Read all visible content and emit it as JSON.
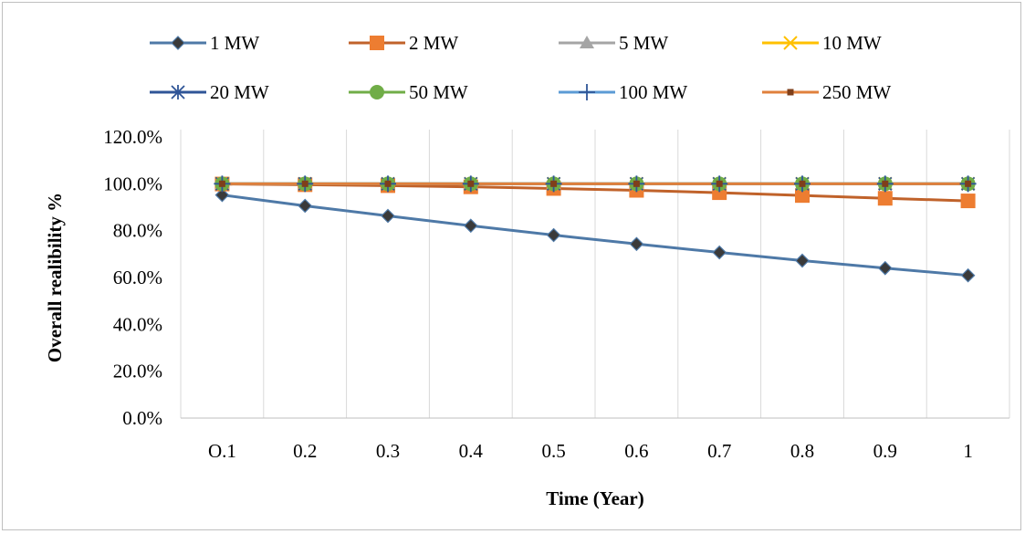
{
  "chart_data": {
    "type": "line",
    "title": "",
    "xlabel": "Time (Year)",
    "ylabel": "Overall realibility %",
    "categories": [
      "O.1",
      "0.2",
      "0.3",
      "0.4",
      "0.5",
      "0.6",
      "0.7",
      "0.8",
      "0.9",
      "1"
    ],
    "ylim": [
      0,
      120
    ],
    "y_ticks": [
      "0.0%",
      "20.0%",
      "40.0%",
      "60.0%",
      "80.0%",
      "100.0%",
      "120.0%"
    ],
    "grid": "vertical",
    "legend_position": "top",
    "series": [
      {
        "name": "1  MW",
        "color": "#4e79a7",
        "marker": "diamond-dark",
        "values": [
          95.2,
          90.6,
          86.3,
          82.1,
          78.1,
          74.3,
          70.7,
          67.2,
          64.0,
          60.9
        ]
      },
      {
        "name": "2 MW",
        "color": "#c0622a",
        "marker": "square-orange",
        "values": [
          99.9,
          99.6,
          99.2,
          98.7,
          98.0,
          97.2,
          96.2,
          95.0,
          93.8,
          92.7
        ]
      },
      {
        "name": "5 MW",
        "color": "#a5a5a5",
        "marker": "triangle",
        "values": [
          100,
          100,
          100,
          100,
          100,
          100,
          100,
          100,
          100,
          100
        ]
      },
      {
        "name": "10 MW",
        "color": "#ffc000",
        "marker": "x",
        "values": [
          100,
          100,
          100,
          100,
          100,
          100,
          100,
          100,
          100,
          100
        ]
      },
      {
        "name": "20 MW",
        "color": "#2f5597",
        "marker": "star",
        "values": [
          100,
          100,
          100,
          100,
          100,
          100,
          100,
          100,
          100,
          100
        ]
      },
      {
        "name": "50 MW",
        "color": "#70ad47",
        "marker": "circle",
        "values": [
          100,
          100,
          100,
          100,
          100,
          100,
          100,
          100,
          100,
          100
        ]
      },
      {
        "name": "100 MW",
        "color": "#5b9bd5",
        "marker": "plus",
        "values": [
          100,
          100,
          100,
          100,
          100,
          100,
          100,
          100,
          100,
          100
        ]
      },
      {
        "name": "250 MW",
        "color": "#e0803c",
        "marker": "dash",
        "values": [
          100,
          100,
          100,
          100,
          100,
          100,
          100,
          100,
          100,
          100
        ]
      }
    ]
  }
}
